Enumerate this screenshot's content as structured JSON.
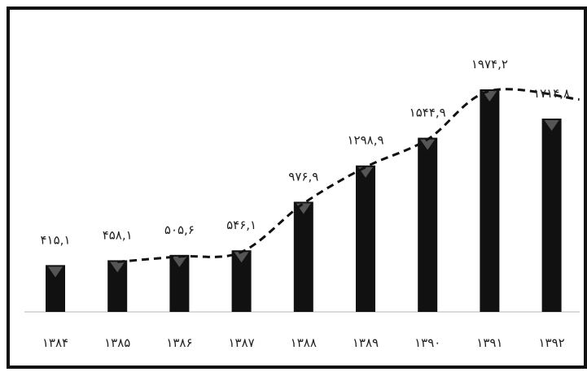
{
  "chart_data": {
    "type": "bar",
    "categories": [
      "۱۳۸۴",
      "۱۳۸۵",
      "۱۳۸۶",
      "۱۳۸۷",
      "۱۳۸۸",
      "۱۳۸۹",
      "۱۳۹۰",
      "۱۳۹۱",
      "۱۳۹۲"
    ],
    "values": [
      415.1,
      458.1,
      505.6,
      546.1,
      976.9,
      1298.9,
      1544.9,
      1974.2,
      1714.8
    ],
    "value_labels": [
      "۴۱۵,۱",
      "۴۵۸,۱",
      "۵۰۵,۶",
      "۵۴۶,۱",
      "۹۷۶,۹",
      "۱۲۹۸,۹",
      "۱۵۴۴,۹",
      "۱۹۷۴,۲",
      "۱۷۱۴,۸"
    ],
    "trend_line": {
      "style": "dashed",
      "values": [
        458.1,
        505.6,
        546.1,
        976.9,
        1298.9,
        1544.9,
        1974.2,
        1714.8
      ]
    },
    "title": "",
    "xlabel": "",
    "ylabel": "",
    "ylim": [
      0,
      2000
    ],
    "grid": false,
    "legend": "none",
    "colors": {
      "bar": "#111111",
      "bar_marker": "#555555",
      "line": "#111111",
      "frame": "#111111"
    }
  }
}
